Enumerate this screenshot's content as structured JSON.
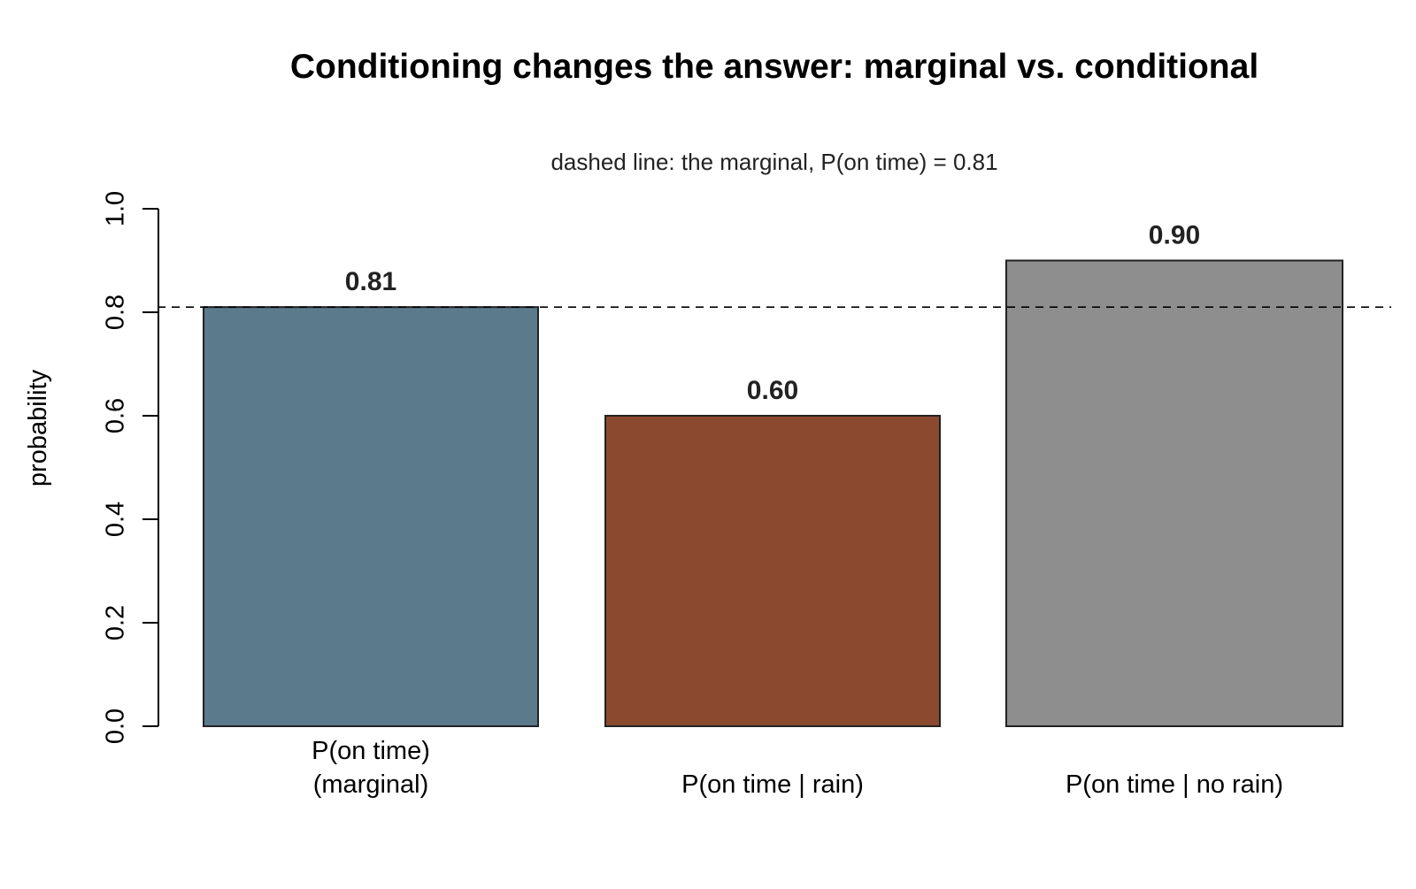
{
  "chart_data": {
    "type": "bar",
    "title": "Conditioning changes the answer: marginal vs. conditional",
    "subtitle": "dashed line: the marginal, P(on time) = 0.81",
    "xlabel": "",
    "ylabel": "probability",
    "ylim": [
      0,
      1.0
    ],
    "yticks": [
      "0.0",
      "0.2",
      "0.4",
      "0.6",
      "0.8",
      "1.0"
    ],
    "ytick_values": [
      0,
      0.2,
      0.4,
      0.6,
      0.8,
      1.0
    ],
    "grid": false,
    "categories": [
      [
        "P(on time)",
        "(marginal)"
      ],
      [
        "P(on time | rain)"
      ],
      [
        "P(on time | no rain)"
      ]
    ],
    "values": [
      0.81,
      0.6,
      0.9
    ],
    "data_labels": [
      "0.81",
      "0.60",
      "0.90"
    ],
    "colors": [
      "#5b7a8b",
      "#8b4a2f",
      "#8e8e8e"
    ],
    "reference_line": {
      "value": 0.81,
      "style": "dashed"
    }
  }
}
